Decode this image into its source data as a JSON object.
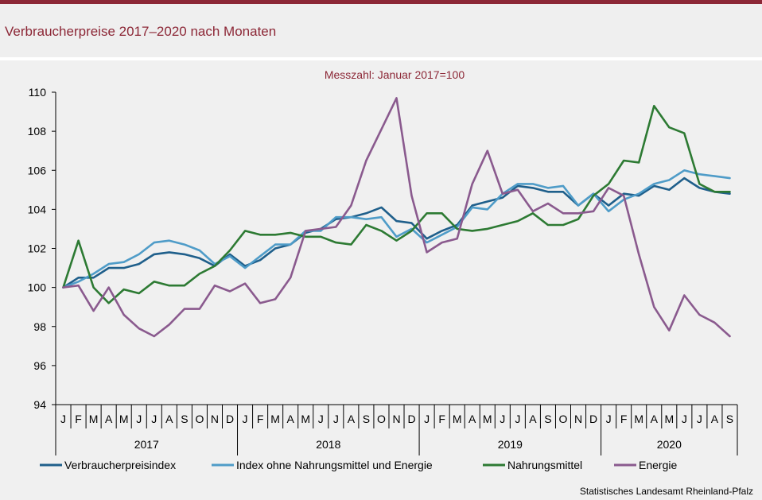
{
  "title": "Verbraucherpreise 2017–2020 nach Monaten",
  "source": "Statistisches Landesamt Rheinland-Pfalz",
  "chart_data": {
    "type": "line",
    "subtitle": "Messzahl:  Januar  2017=100",
    "ylim": [
      94,
      110
    ],
    "yticks": [
      94,
      96,
      98,
      100,
      102,
      104,
      106,
      108,
      110
    ],
    "grid": false,
    "legend_position": "bottom",
    "years": [
      "2017",
      "2018",
      "2019",
      "2020"
    ],
    "month_labels": [
      "J",
      "F",
      "M",
      "A",
      "M",
      "J",
      "J",
      "A",
      "S",
      "O",
      "N",
      "D"
    ],
    "categories": [
      "J",
      "F",
      "M",
      "A",
      "M",
      "J",
      "J",
      "A",
      "S",
      "O",
      "N",
      "D",
      "J",
      "F",
      "M",
      "A",
      "M",
      "J",
      "J",
      "A",
      "S",
      "O",
      "N",
      "D",
      "J",
      "F",
      "M",
      "A",
      "M",
      "J",
      "J",
      "A",
      "S",
      "O",
      "N",
      "D",
      "J",
      "F",
      "M",
      "A",
      "M",
      "J",
      "J",
      "A",
      "S"
    ],
    "series": [
      {
        "name": "Verbraucherpreisindex",
        "color": "#1f5f8b",
        "values": [
          100.0,
          100.5,
          100.5,
          101.0,
          101.0,
          101.2,
          101.7,
          101.8,
          101.7,
          101.5,
          101.1,
          101.7,
          101.1,
          101.4,
          102.0,
          102.2,
          102.8,
          103.0,
          103.5,
          103.6,
          103.8,
          104.1,
          103.4,
          103.3,
          102.5,
          102.9,
          103.2,
          104.2,
          104.4,
          104.6,
          105.2,
          105.1,
          104.9,
          104.9,
          104.2,
          104.8,
          104.2,
          104.8,
          104.7,
          105.2,
          105.0,
          105.6,
          105.1,
          104.9,
          104.8
        ]
      },
      {
        "name": "Index ohne Nahrungsmittel und Energie",
        "color": "#4f9cc8",
        "values": [
          100.0,
          100.3,
          100.7,
          101.2,
          101.3,
          101.7,
          102.3,
          102.4,
          102.2,
          101.9,
          101.2,
          101.6,
          101.0,
          101.6,
          102.2,
          102.2,
          102.9,
          102.9,
          103.6,
          103.6,
          103.5,
          103.6,
          102.6,
          103.0,
          102.3,
          102.7,
          103.1,
          104.1,
          104.0,
          104.8,
          105.3,
          105.3,
          105.1,
          105.2,
          104.2,
          104.8,
          103.9,
          104.5,
          104.8,
          105.3,
          105.5,
          106.0,
          105.8,
          105.7,
          105.6
        ]
      },
      {
        "name": "Nahrungsmittel",
        "color": "#2d7a33",
        "values": [
          100.0,
          102.4,
          100.0,
          99.2,
          99.9,
          99.7,
          100.3,
          100.1,
          100.1,
          100.7,
          101.1,
          101.9,
          102.9,
          102.7,
          102.7,
          102.8,
          102.6,
          102.6,
          102.3,
          102.2,
          103.2,
          102.9,
          102.4,
          102.9,
          103.8,
          103.8,
          103.0,
          102.9,
          103.0,
          103.2,
          103.4,
          103.8,
          103.2,
          103.2,
          103.5,
          104.7,
          105.3,
          106.5,
          106.4,
          109.3,
          108.2,
          107.9,
          105.3,
          104.9,
          104.9
        ]
      },
      {
        "name": "Energie",
        "color": "#8a5a8e",
        "values": [
          100.0,
          100.1,
          98.8,
          100.0,
          98.6,
          97.9,
          97.5,
          98.1,
          98.9,
          98.9,
          100.1,
          99.8,
          100.2,
          99.2,
          99.4,
          100.5,
          102.9,
          103.0,
          103.1,
          104.2,
          106.5,
          108.1,
          109.7,
          104.7,
          101.8,
          102.3,
          102.5,
          105.3,
          107.0,
          104.8,
          105.0,
          103.9,
          104.3,
          103.8,
          103.8,
          103.9,
          105.1,
          104.7,
          101.7,
          99.0,
          97.8,
          99.6,
          98.6,
          98.2,
          97.5
        ]
      }
    ]
  }
}
